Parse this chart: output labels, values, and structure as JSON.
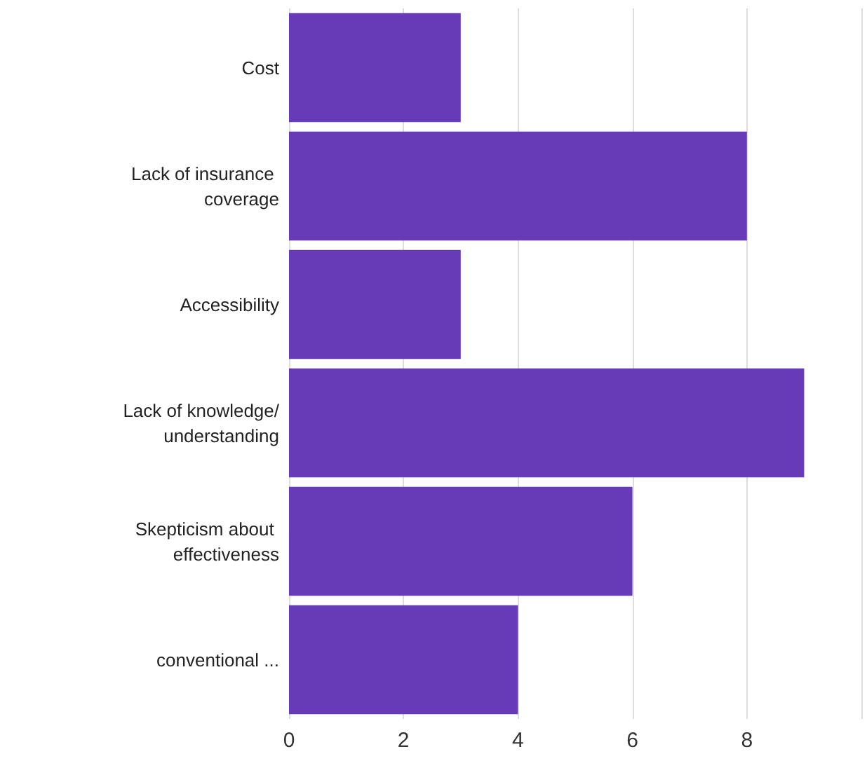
{
  "chart_data": {
    "type": "bar",
    "orientation": "horizontal",
    "categories": [
      "Cost",
      "Lack of insurance coverage",
      "Accessibility",
      "Lack of knowledge/understanding",
      "Skepticism about effectiveness",
      "conventional ..."
    ],
    "values": [
      3,
      8,
      3,
      9,
      6,
      4
    ],
    "color": "#673ab7",
    "xlim": [
      0,
      10
    ],
    "xticks": [
      0,
      2,
      4,
      6,
      8,
      {
        "value": 10,
        "label": null
      }
    ],
    "grid": "x"
  }
}
